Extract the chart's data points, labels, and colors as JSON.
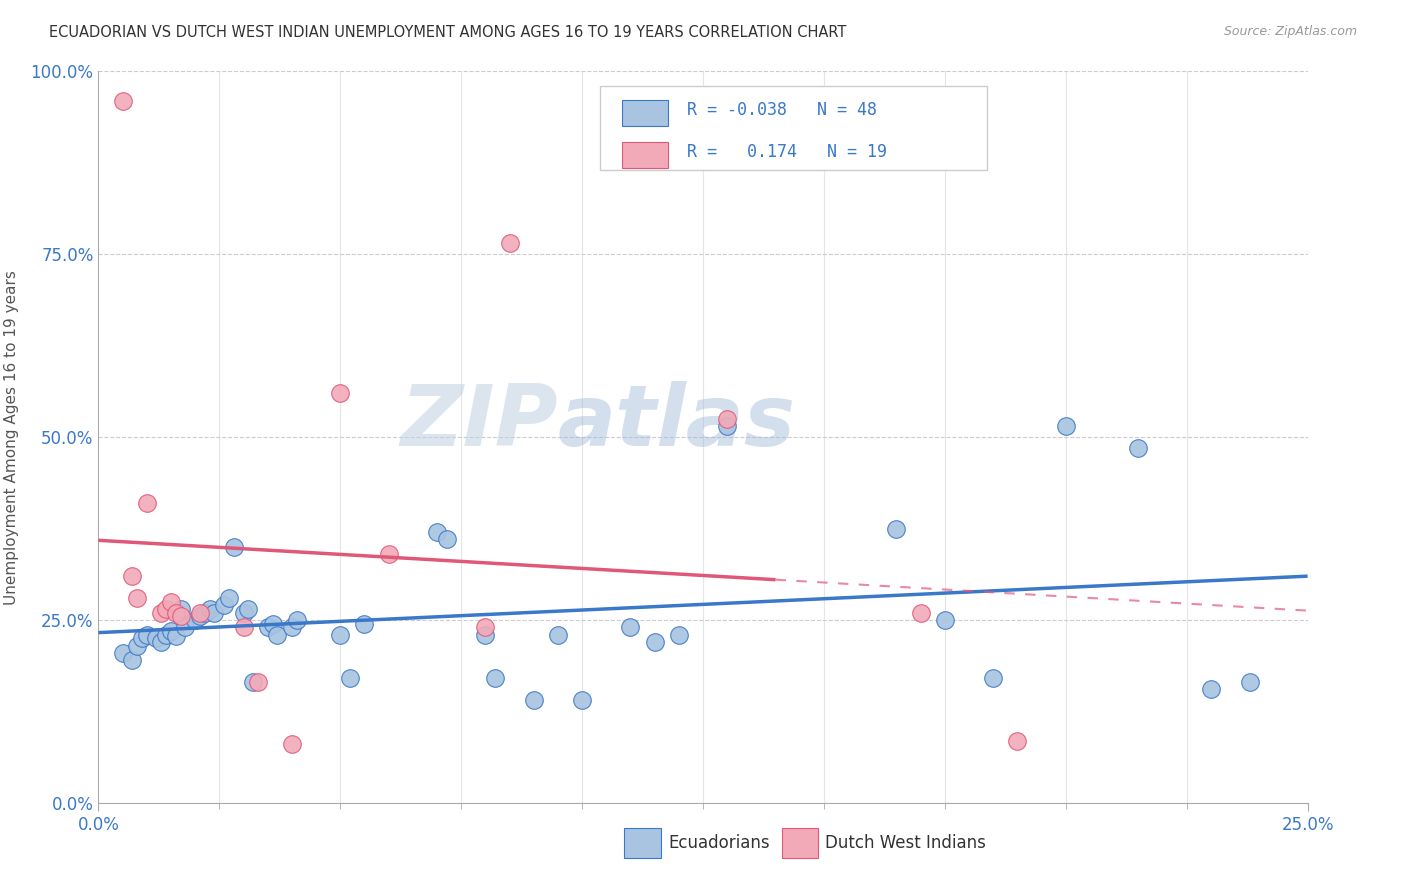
{
  "title": "ECUADORIAN VS DUTCH WEST INDIAN UNEMPLOYMENT AMONG AGES 16 TO 19 YEARS CORRELATION CHART",
  "source": "Source: ZipAtlas.com",
  "ylabel": "Unemployment Among Ages 16 to 19 years",
  "ytick_labels": [
    "0.0%",
    "25.0%",
    "50.0%",
    "75.0%",
    "100.0%"
  ],
  "ytick_values": [
    0.0,
    0.25,
    0.5,
    0.75,
    1.0
  ],
  "legend_label1": "Ecuadorians",
  "legend_label2": "Dutch West Indians",
  "blue_color": "#a8c4e0",
  "pink_color": "#f2aab8",
  "blue_line_color": "#3a78c9",
  "pink_line_color": "#e05878",
  "blue_scatter": [
    [
      0.005,
      0.205
    ],
    [
      0.007,
      0.195
    ],
    [
      0.008,
      0.215
    ],
    [
      0.009,
      0.225
    ],
    [
      0.01,
      0.23
    ],
    [
      0.012,
      0.225
    ],
    [
      0.013,
      0.22
    ],
    [
      0.014,
      0.23
    ],
    [
      0.015,
      0.235
    ],
    [
      0.016,
      0.228
    ],
    [
      0.017,
      0.265
    ],
    [
      0.018,
      0.24
    ],
    [
      0.02,
      0.25
    ],
    [
      0.021,
      0.255
    ],
    [
      0.022,
      0.26
    ],
    [
      0.023,
      0.265
    ],
    [
      0.024,
      0.26
    ],
    [
      0.026,
      0.27
    ],
    [
      0.027,
      0.28
    ],
    [
      0.028,
      0.35
    ],
    [
      0.03,
      0.26
    ],
    [
      0.031,
      0.265
    ],
    [
      0.032,
      0.165
    ],
    [
      0.035,
      0.24
    ],
    [
      0.036,
      0.245
    ],
    [
      0.037,
      0.23
    ],
    [
      0.04,
      0.24
    ],
    [
      0.041,
      0.25
    ],
    [
      0.05,
      0.23
    ],
    [
      0.052,
      0.17
    ],
    [
      0.055,
      0.245
    ],
    [
      0.07,
      0.37
    ],
    [
      0.072,
      0.36
    ],
    [
      0.08,
      0.23
    ],
    [
      0.082,
      0.17
    ],
    [
      0.09,
      0.14
    ],
    [
      0.095,
      0.23
    ],
    [
      0.1,
      0.14
    ],
    [
      0.11,
      0.24
    ],
    [
      0.115,
      0.22
    ],
    [
      0.12,
      0.23
    ],
    [
      0.13,
      0.515
    ],
    [
      0.165,
      0.375
    ],
    [
      0.175,
      0.25
    ],
    [
      0.185,
      0.17
    ],
    [
      0.2,
      0.515
    ],
    [
      0.215,
      0.485
    ],
    [
      0.23,
      0.155
    ],
    [
      0.238,
      0.165
    ]
  ],
  "pink_scatter": [
    [
      0.005,
      0.96
    ],
    [
      0.007,
      0.31
    ],
    [
      0.008,
      0.28
    ],
    [
      0.01,
      0.41
    ],
    [
      0.013,
      0.26
    ],
    [
      0.014,
      0.265
    ],
    [
      0.015,
      0.275
    ],
    [
      0.016,
      0.26
    ],
    [
      0.017,
      0.255
    ],
    [
      0.021,
      0.26
    ],
    [
      0.03,
      0.24
    ],
    [
      0.033,
      0.165
    ],
    [
      0.04,
      0.08
    ],
    [
      0.05,
      0.56
    ],
    [
      0.06,
      0.34
    ],
    [
      0.08,
      0.24
    ],
    [
      0.085,
      0.765
    ],
    [
      0.13,
      0.525
    ],
    [
      0.17,
      0.26
    ],
    [
      0.19,
      0.085
    ]
  ],
  "r_blue": -0.038,
  "r_pink": 0.174,
  "background_color": "#ffffff",
  "watermark_zip": "ZIP",
  "watermark_atlas": "atlas",
  "xlim": [
    0.0,
    0.25
  ],
  "ylim": [
    0.0,
    1.0
  ]
}
